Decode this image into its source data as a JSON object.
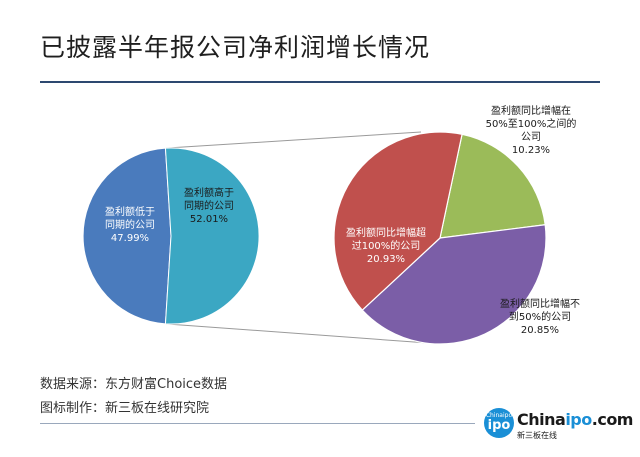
{
  "title": "已披露半年报公司净利润增长情况",
  "notes": {
    "source": "数据来源：东方财富Choice数据",
    "maker": "图标制作：新三板在线研究院"
  },
  "logo": {
    "badge_small": "Chinaipo",
    "badge_big": "ipo",
    "word_prefix": "China",
    "word_highlight": "ipo",
    "word_suffix": ".com",
    "sub": "新三板在线"
  },
  "chart_data": [
    {
      "type": "pie",
      "title": "",
      "slices": [
        {
          "label": "盈利额低于同期的公司",
          "value": 47.99,
          "value_label": "47.99%",
          "color": "#4a7bbd",
          "lines": [
            "盈利额低于",
            "同期的公司"
          ]
        },
        {
          "label": "盈利额高于同期的公司",
          "value": 52.01,
          "value_label": "52.01%",
          "color": "#3ba7c3",
          "lines": [
            "盈利额高于",
            "同期的公司"
          ]
        }
      ]
    },
    {
      "type": "pie",
      "title": "",
      "slices": [
        {
          "label": "盈利额同比增幅在50%至100%之间的公司",
          "value": 10.23,
          "value_label": "10.23%",
          "color": "#9bbb59",
          "lines": [
            "盈利额同比增幅在",
            "50%至100%之间的",
            "公司"
          ]
        },
        {
          "label": "盈利额同比增幅不到50%的公司",
          "value": 20.85,
          "value_label": "20.85%",
          "color": "#7b5ea7",
          "lines": [
            "盈利额同比增幅不",
            "到50%的公司"
          ]
        },
        {
          "label": "盈利额同比增幅超过100%的公司",
          "value": 20.93,
          "value_label": "20.93%",
          "color": "#c0504d",
          "lines": [
            "盈利额同比增幅超",
            "过100%的公司"
          ]
        }
      ]
    }
  ]
}
